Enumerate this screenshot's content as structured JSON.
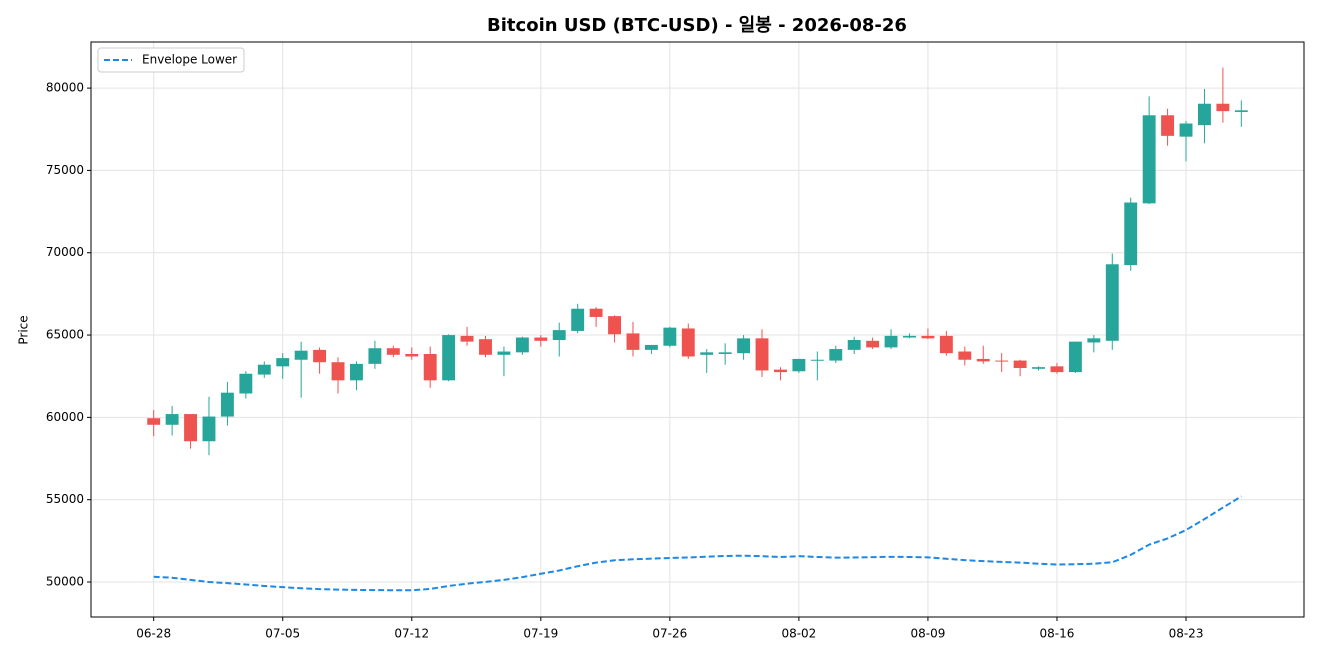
{
  "chart_data": {
    "type": "candlestick",
    "title": "Bitcoin USD (BTC-USD) - 일봉 - 2026-08-26",
    "ylabel": "Price",
    "categories": [
      "06-28",
      null,
      null,
      null,
      null,
      null,
      null,
      "07-05",
      null,
      null,
      null,
      null,
      null,
      null,
      "07-12",
      null,
      null,
      null,
      null,
      null,
      null,
      "07-19",
      null,
      null,
      null,
      null,
      null,
      null,
      "07-26",
      null,
      null,
      null,
      null,
      null,
      null,
      "08-02",
      null,
      null,
      null,
      null,
      null,
      null,
      "08-09",
      null,
      null,
      null,
      null,
      null,
      null,
      "08-16",
      null,
      null,
      null,
      null,
      null,
      null,
      "08-23",
      null,
      null,
      null
    ],
    "open": [
      59950,
      59550,
      60200,
      58550,
      60050,
      61450,
      62600,
      63100,
      63500,
      64100,
      63350,
      62250,
      63250,
      64200,
      63850,
      63850,
      62250,
      64950,
      64750,
      63800,
      63950,
      64850,
      64700,
      65250,
      66600,
      66150,
      65100,
      64100,
      64350,
      65400,
      63800,
      63850,
      63900,
      64800,
      62900,
      62800,
      63450,
      63450,
      64100,
      64650,
      64250,
      64850,
      64950,
      64950,
      64000,
      63550,
      63450,
      63450,
      62950,
      63100,
      62750,
      64550,
      64650,
      69250,
      73000,
      78350,
      77050,
      77750,
      79050,
      78550
    ],
    "high": [
      60450,
      60700,
      60200,
      61250,
      62150,
      62800,
      63400,
      63900,
      64600,
      64250,
      63650,
      63400,
      64650,
      64350,
      64250,
      64300,
      65050,
      65500,
      64950,
      64300,
      64900,
      65000,
      65750,
      66900,
      66700,
      66200,
      65800,
      64400,
      65500,
      65700,
      64150,
      64500,
      65000,
      65350,
      63050,
      63550,
      64000,
      64350,
      64900,
      64850,
      65350,
      65100,
      65400,
      65250,
      64300,
      64350,
      63900,
      63500,
      63100,
      63300,
      64600,
      65000,
      69950,
      73350,
      79500,
      78750,
      78000,
      79950,
      81250,
      79250
    ],
    "low": [
      58850,
      58900,
      58100,
      57700,
      59500,
      61150,
      62400,
      62350,
      61200,
      62650,
      61450,
      61650,
      62950,
      63650,
      63500,
      61800,
      62200,
      64350,
      63650,
      62500,
      63800,
      64300,
      63700,
      65100,
      65500,
      64550,
      63700,
      63850,
      64250,
      63550,
      62700,
      63200,
      63500,
      62450,
      62250,
      62700,
      62250,
      63300,
      63850,
      64150,
      64150,
      64800,
      64750,
      63750,
      63150,
      63250,
      62750,
      62500,
      62850,
      62650,
      62700,
      63950,
      64100,
      68900,
      72950,
      76500,
      75550,
      76650,
      77900,
      77650
    ],
    "close": [
      59550,
      60200,
      58550,
      60050,
      61500,
      62650,
      63200,
      63600,
      64050,
      63350,
      62250,
      63250,
      64200,
      63800,
      63700,
      62250,
      65000,
      64600,
      63800,
      64000,
      64850,
      64650,
      65300,
      66600,
      66100,
      65050,
      64100,
      64400,
      65450,
      63700,
      63950,
      63950,
      64800,
      62850,
      62750,
      63550,
      63500,
      64150,
      64700,
      64250,
      64950,
      64950,
      64800,
      63900,
      63500,
      63400,
      63400,
      63000,
      63050,
      62750,
      64600,
      64800,
      69300,
      73050,
      78350,
      77100,
      77850,
      79050,
      78600,
      78650
    ],
    "up_color": "#26a69a",
    "down_color": "#ef5350",
    "series": [
      {
        "name": "Envelope Lower",
        "color": "#1e88e5",
        "style": "dashed",
        "values": [
          50320,
          50260,
          50130,
          50000,
          49930,
          49850,
          49760,
          49690,
          49620,
          49570,
          49540,
          49520,
          49510,
          49500,
          49500,
          49580,
          49760,
          49900,
          50010,
          50130,
          50300,
          50500,
          50700,
          50960,
          51180,
          51320,
          51380,
          51420,
          51460,
          51490,
          51540,
          51580,
          51600,
          51570,
          51520,
          51570,
          51520,
          51480,
          51490,
          51510,
          51530,
          51520,
          51500,
          51410,
          51330,
          51270,
          51220,
          51180,
          51110,
          51060,
          51080,
          51110,
          51200,
          51650,
          52270,
          52650,
          53160,
          53820,
          54520,
          55200
        ]
      }
    ],
    "ylim": [
      47875,
      82800
    ],
    "yticks": [
      50000,
      55000,
      60000,
      65000,
      70000,
      75000,
      80000
    ],
    "grid": true,
    "legend": "upper left"
  }
}
